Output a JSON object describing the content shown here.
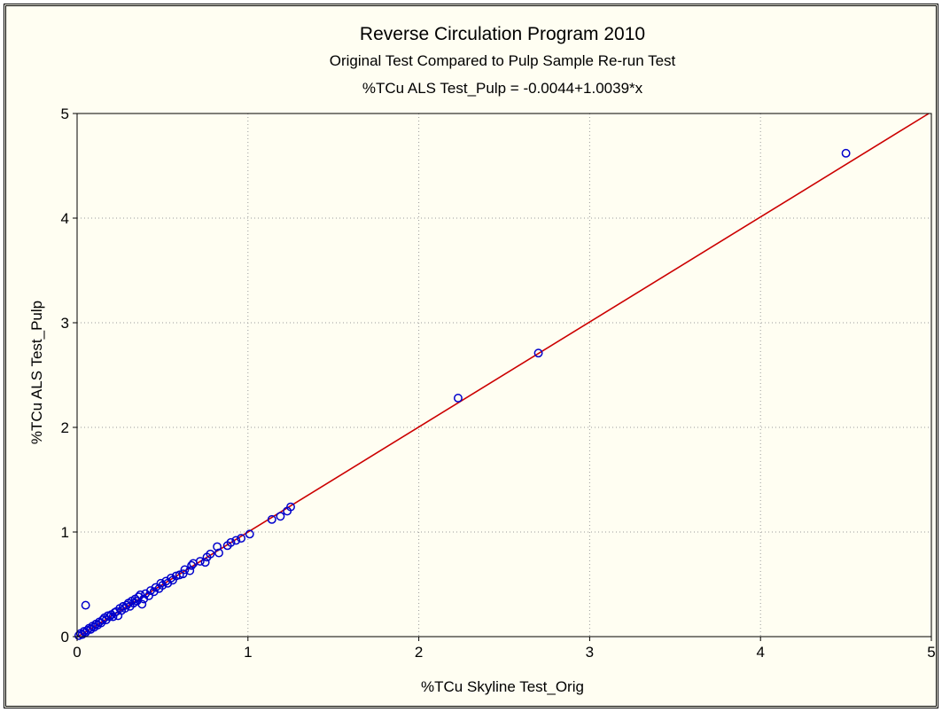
{
  "chart_data": {
    "type": "scatter",
    "title": "Reverse Circulation Program 2010",
    "subtitle": "Original Test Compared to Pulp Sample Re-run Test",
    "equation": "%TCu ALS Test_Pulp = -0.0044+1.0039*x",
    "xlabel": "%TCu Skyline Test_Orig",
    "ylabel": "%TCu ALS Test_Pulp",
    "xlim": [
      0,
      5
    ],
    "ylim": [
      0,
      5
    ],
    "xticks": [
      "0",
      "1",
      "2",
      "3",
      "4",
      "5"
    ],
    "yticks": [
      "0",
      "1",
      "2",
      "3",
      "4",
      "5"
    ],
    "grid": true,
    "fit_line": {
      "intercept": -0.0044,
      "slope": 1.0039,
      "color": "#cc0000"
    },
    "marker_color": "#0000cc",
    "background_color": "#fffef2",
    "series": [
      {
        "points": [
          [
            0.01,
            0.01
          ],
          [
            0.02,
            0.03
          ],
          [
            0.03,
            0.02
          ],
          [
            0.04,
            0.05
          ],
          [
            0.05,
            0.04
          ],
          [
            0.05,
            0.3
          ],
          [
            0.06,
            0.06
          ],
          [
            0.07,
            0.08
          ],
          [
            0.08,
            0.07
          ],
          [
            0.09,
            0.1
          ],
          [
            0.1,
            0.09
          ],
          [
            0.11,
            0.12
          ],
          [
            0.12,
            0.11
          ],
          [
            0.13,
            0.14
          ],
          [
            0.14,
            0.13
          ],
          [
            0.15,
            0.16
          ],
          [
            0.16,
            0.18
          ],
          [
            0.17,
            0.16
          ],
          [
            0.18,
            0.2
          ],
          [
            0.19,
            0.19
          ],
          [
            0.2,
            0.21
          ],
          [
            0.21,
            0.19
          ],
          [
            0.22,
            0.23
          ],
          [
            0.23,
            0.24
          ],
          [
            0.24,
            0.2
          ],
          [
            0.25,
            0.27
          ],
          [
            0.26,
            0.25
          ],
          [
            0.27,
            0.29
          ],
          [
            0.28,
            0.27
          ],
          [
            0.29,
            0.3
          ],
          [
            0.3,
            0.32
          ],
          [
            0.31,
            0.29
          ],
          [
            0.32,
            0.34
          ],
          [
            0.33,
            0.32
          ],
          [
            0.34,
            0.36
          ],
          [
            0.35,
            0.34
          ],
          [
            0.36,
            0.38
          ],
          [
            0.37,
            0.4
          ],
          [
            0.38,
            0.31
          ],
          [
            0.39,
            0.36
          ],
          [
            0.4,
            0.41
          ],
          [
            0.42,
            0.39
          ],
          [
            0.43,
            0.44
          ],
          [
            0.45,
            0.43
          ],
          [
            0.46,
            0.47
          ],
          [
            0.48,
            0.46
          ],
          [
            0.49,
            0.51
          ],
          [
            0.5,
            0.49
          ],
          [
            0.52,
            0.53
          ],
          [
            0.53,
            0.51
          ],
          [
            0.55,
            0.56
          ],
          [
            0.56,
            0.54
          ],
          [
            0.58,
            0.58
          ],
          [
            0.6,
            0.59
          ],
          [
            0.62,
            0.6
          ],
          [
            0.63,
            0.64
          ],
          [
            0.66,
            0.63
          ],
          [
            0.67,
            0.68
          ],
          [
            0.68,
            0.7
          ],
          [
            0.72,
            0.72
          ],
          [
            0.75,
            0.71
          ],
          [
            0.76,
            0.76
          ],
          [
            0.78,
            0.79
          ],
          [
            0.82,
            0.86
          ],
          [
            0.83,
            0.8
          ],
          [
            0.88,
            0.87
          ],
          [
            0.9,
            0.9
          ],
          [
            0.93,
            0.92
          ],
          [
            0.96,
            0.94
          ],
          [
            1.01,
            0.98
          ],
          [
            1.14,
            1.12
          ],
          [
            1.19,
            1.15
          ],
          [
            1.23,
            1.2
          ],
          [
            1.25,
            1.24
          ],
          [
            2.23,
            2.28
          ],
          [
            2.7,
            2.71
          ],
          [
            4.5,
            4.62
          ]
        ]
      }
    ]
  }
}
